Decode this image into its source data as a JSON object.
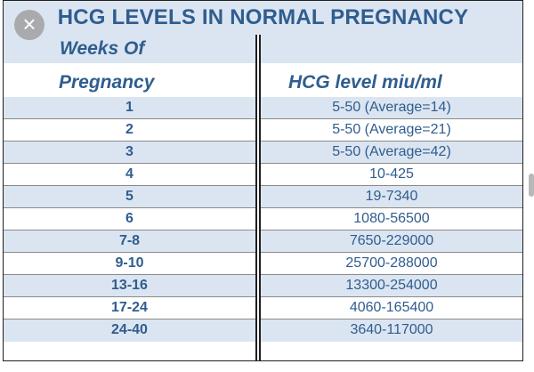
{
  "title": "HCG LEVELS IN NORMAL PREGNANCY",
  "header": {
    "weeks_line1": "Weeks  Of",
    "weeks_line2": "Pregnancy",
    "level": "HCG level miu/ml"
  },
  "close_icon": "close-icon",
  "rows": [
    {
      "week": "1",
      "level": "5-50 (Average=14)"
    },
    {
      "week": "2",
      "level": "5-50 (Average=21)"
    },
    {
      "week": "3",
      "level": "5-50 (Average=42)"
    },
    {
      "week": "4",
      "level": "10-425"
    },
    {
      "week": "5",
      "level": "19-7340"
    },
    {
      "week": "6",
      "level": "1080-56500"
    },
    {
      "week": "7-8",
      "level": "7650-229000"
    },
    {
      "week": "9-10",
      "level": "25700-288000"
    },
    {
      "week": "13-16",
      "level": "13300-254000"
    },
    {
      "week": "17-24",
      "level": "4060-165400"
    },
    {
      "week": "24-40",
      "level": "3640-117000"
    }
  ],
  "colors": {
    "text": "#2f5d8f",
    "band": "#dbe5f1",
    "border": "#1f1f1f"
  }
}
